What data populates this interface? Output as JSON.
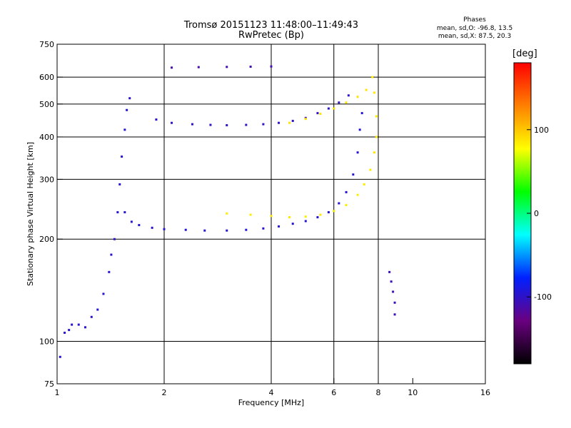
{
  "header": {
    "title_line1": "Tromsø 20151123 11:48:00–11:49:43",
    "title_line2": "RwPretec (Bp)",
    "phases_label": "Phases",
    "stats_o": "mean, sd,O: -96.8, 13.5",
    "stats_x": "mean, sd,X: 87.5, 20.3"
  },
  "colorbar": {
    "unit": "[deg]",
    "ticks": [
      {
        "label": "100",
        "value": 100
      },
      {
        "label": "0",
        "value": 0
      },
      {
        "label": "-100",
        "value": -100
      }
    ],
    "range": [
      -180,
      180
    ],
    "colors": [
      "#000000",
      "#6a0080",
      "#0020ff",
      "#00ffff",
      "#00ff00",
      "#ffff00",
      "#ff8000",
      "#ff0000"
    ]
  },
  "chart_data": {
    "type": "scatter",
    "xlabel": "Frequency [MHz]",
    "ylabel": "Stationary phase Virtual Height [km]",
    "x_scale": "log",
    "y_scale": "log",
    "xlim": [
      1,
      16
    ],
    "ylim": [
      75,
      750
    ],
    "x_ticks": [
      1,
      2,
      4,
      6,
      8,
      10,
      16
    ],
    "x_tick_labels": [
      "1",
      "2",
      "4",
      "6",
      "8",
      "10",
      "16"
    ],
    "y_ticks": [
      75,
      100,
      200,
      300,
      400,
      500,
      600,
      750
    ],
    "y_tick_labels": [
      "75",
      "100",
      "200",
      "300",
      "400",
      "500",
      "600",
      "750"
    ],
    "x_gridlines": [
      2,
      4,
      6,
      8
    ],
    "y_gridlines": [
      100,
      200,
      300,
      400,
      500,
      600
    ],
    "grid": true,
    "color_variable": "phase [deg]",
    "traces": [
      {
        "name": "",
        "phase": -96,
        "points": [
          [
            1.02,
            90
          ],
          [
            1.05,
            106
          ],
          [
            1.08,
            108
          ],
          [
            1.1,
            112
          ],
          [
            1.15,
            112
          ],
          [
            1.2,
            110
          ],
          [
            1.25,
            118
          ],
          [
            1.3,
            124
          ],
          [
            1.35,
            138
          ],
          [
            1.4,
            160
          ],
          [
            1.42,
            180
          ],
          [
            1.45,
            200
          ],
          [
            1.48,
            240
          ],
          [
            1.5,
            290
          ],
          [
            1.52,
            350
          ],
          [
            1.55,
            420
          ],
          [
            1.57,
            480
          ],
          [
            1.6,
            520
          ]
        ]
      },
      {
        "name": "",
        "phase": -95,
        "points": [
          [
            1.55,
            240
          ],
          [
            1.62,
            225
          ],
          [
            1.7,
            220
          ],
          [
            1.85,
            216
          ],
          [
            2.0,
            214
          ],
          [
            2.3,
            213
          ],
          [
            2.6,
            212
          ],
          [
            3.0,
            212
          ],
          [
            3.4,
            213
          ],
          [
            3.8,
            215
          ],
          [
            4.2,
            218
          ],
          [
            4.6,
            222
          ],
          [
            5.0,
            226
          ],
          [
            5.4,
            232
          ],
          [
            5.8,
            240
          ],
          [
            6.2,
            255
          ],
          [
            6.5,
            275
          ],
          [
            6.8,
            310
          ],
          [
            7.0,
            360
          ],
          [
            7.1,
            420
          ],
          [
            7.2,
            470
          ]
        ]
      },
      {
        "name": "",
        "phase": 85,
        "points": [
          [
            3.0,
            238
          ],
          [
            3.5,
            236
          ],
          [
            4.0,
            234
          ],
          [
            4.5,
            232
          ],
          [
            5.0,
            233
          ],
          [
            5.5,
            236
          ],
          [
            6.0,
            242
          ],
          [
            6.5,
            252
          ],
          [
            7.0,
            270
          ],
          [
            7.3,
            290
          ],
          [
            7.6,
            320
          ],
          [
            7.8,
            360
          ],
          [
            7.9,
            400
          ],
          [
            7.9,
            460
          ],
          [
            7.8,
            540
          ],
          [
            7.7,
            600
          ]
        ]
      },
      {
        "name": "",
        "phase": -100,
        "points": [
          [
            1.9,
            450
          ],
          [
            2.1,
            440
          ],
          [
            2.4,
            436
          ],
          [
            2.7,
            434
          ],
          [
            3.0,
            433
          ],
          [
            3.4,
            434
          ],
          [
            3.8,
            436
          ],
          [
            4.2,
            440
          ],
          [
            4.6,
            446
          ],
          [
            5.0,
            455
          ],
          [
            5.4,
            470
          ],
          [
            5.8,
            485
          ],
          [
            6.2,
            505
          ],
          [
            6.6,
            530
          ]
        ]
      },
      {
        "name": "",
        "phase": 88,
        "points": [
          [
            4.5,
            440
          ],
          [
            5.0,
            452
          ],
          [
            5.5,
            468
          ],
          [
            6.0,
            485
          ],
          [
            6.5,
            505
          ],
          [
            7.0,
            525
          ],
          [
            7.4,
            550
          ]
        ]
      },
      {
        "name": "",
        "phase": -110,
        "points": [
          [
            2.1,
            640
          ],
          [
            2.5,
            642
          ],
          [
            3.0,
            643
          ],
          [
            3.5,
            644
          ],
          [
            4.0,
            645
          ]
        ]
      },
      {
        "name": "",
        "phase": -105,
        "points": [
          [
            8.6,
            160
          ],
          [
            8.7,
            150
          ],
          [
            8.8,
            140
          ],
          [
            8.9,
            130
          ],
          [
            8.9,
            120
          ]
        ]
      }
    ]
  }
}
